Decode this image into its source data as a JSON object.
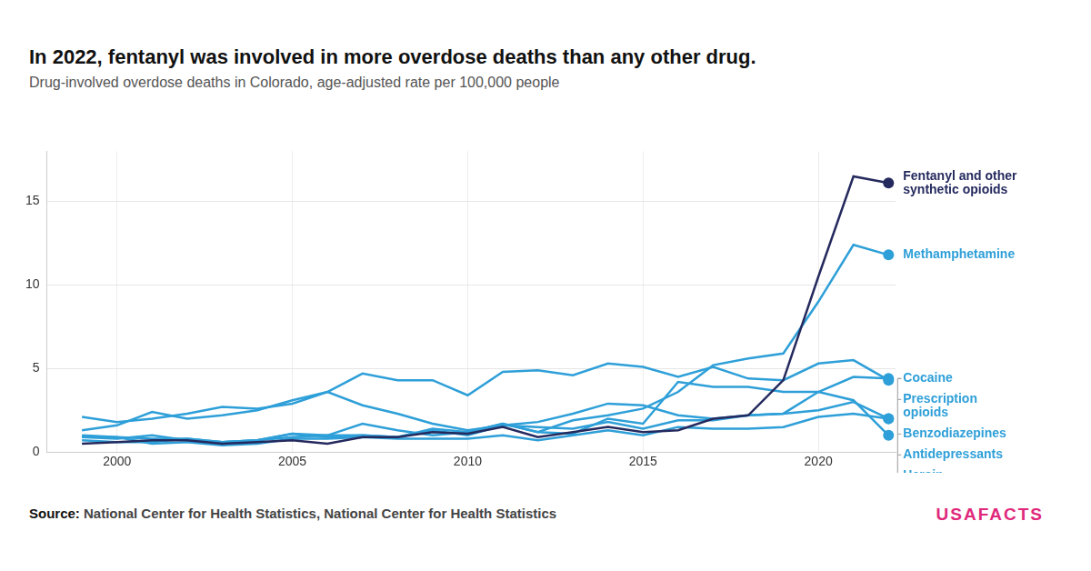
{
  "chart_data": {
    "type": "line",
    "title": "In 2022, fentanyl was involved in more overdose deaths than any other drug.",
    "subtitle": "Drug-involved overdose deaths in Colorado, age-adjusted rate per 100,000 people",
    "source": "Source: National Center for Health Statistics, National Center for Health Statistics",
    "brand": "USAFACTS",
    "x": [
      1999,
      2000,
      2001,
      2002,
      2003,
      2004,
      2005,
      2006,
      2007,
      2008,
      2009,
      2010,
      2011,
      2012,
      2013,
      2014,
      2015,
      2016,
      2017,
      2018,
      2019,
      2020,
      2021,
      2022
    ],
    "series": [
      {
        "name": "Fentanyl and other synthetic opioids",
        "color": "#252a5e",
        "values": [
          0.5,
          0.6,
          0.7,
          0.7,
          0.5,
          0.6,
          0.7,
          0.5,
          0.9,
          0.9,
          1.2,
          1.1,
          1.5,
          0.9,
          1.2,
          1.5,
          1.2,
          1.3,
          2.0,
          2.2,
          4.3,
          10.5,
          16.5,
          16.1
        ]
      },
      {
        "name": "Methamphetamine",
        "color": "#2e9fd8",
        "values": [
          0.9,
          0.8,
          1.0,
          0.7,
          0.6,
          0.7,
          1.1,
          1.0,
          1.7,
          1.3,
          1.0,
          1.2,
          1.7,
          1.2,
          1.9,
          2.2,
          2.6,
          3.6,
          5.2,
          5.6,
          5.9,
          9.0,
          12.4,
          11.8
        ]
      },
      {
        "name": "Cocaine",
        "color": "#2e9fd8",
        "values": [
          1.3,
          1.6,
          2.4,
          2.0,
          2.2,
          2.5,
          3.1,
          3.6,
          2.8,
          2.3,
          1.7,
          1.3,
          1.6,
          1.8,
          2.3,
          2.9,
          2.8,
          2.2,
          2.0,
          2.2,
          2.3,
          3.6,
          4.5,
          4.4
        ]
      },
      {
        "name": "Prescription opioids",
        "color": "#2e9fd8",
        "values": [
          2.1,
          1.8,
          2.0,
          2.3,
          2.7,
          2.6,
          2.9,
          3.6,
          4.7,
          4.3,
          4.3,
          3.4,
          4.8,
          4.9,
          4.6,
          5.3,
          5.1,
          4.5,
          5.1,
          4.4,
          4.3,
          5.3,
          5.5,
          4.3
        ]
      },
      {
        "name": "Benzodiazepines",
        "color": "#2e9fd8",
        "values": [
          0.9,
          0.9,
          0.8,
          0.8,
          0.6,
          0.7,
          1.1,
          0.9,
          1.0,
          0.9,
          1.3,
          1.0,
          1.6,
          1.5,
          1.4,
          1.8,
          1.4,
          1.9,
          1.9,
          2.2,
          2.3,
          2.5,
          3.0,
          2.0
        ]
      },
      {
        "name": "Antidepressants",
        "color": "#2e9fd8",
        "values": [
          1.0,
          0.9,
          0.5,
          0.6,
          0.4,
          0.5,
          0.8,
          0.8,
          0.9,
          0.8,
          0.8,
          0.8,
          1.0,
          0.7,
          1.0,
          1.3,
          1.0,
          1.5,
          1.4,
          1.4,
          1.5,
          2.1,
          2.3,
          2.0
        ]
      },
      {
        "name": "Heroin",
        "color": "#2e9fd8",
        "values": [
          0.7,
          0.6,
          0.6,
          0.8,
          0.6,
          0.7,
          0.9,
          1.0,
          1.0,
          0.9,
          1.4,
          1.2,
          1.7,
          1.2,
          1.1,
          2.0,
          1.7,
          4.2,
          3.9,
          3.9,
          3.6,
          3.6,
          3.1,
          1.0
        ]
      }
    ],
    "xlim": [
      1998,
      2022.2
    ],
    "xticks": [
      2000,
      2005,
      2010,
      2015,
      2020
    ],
    "ylim": [
      0,
      18
    ],
    "yticks": [
      0,
      5,
      10,
      15
    ],
    "grid": true
  }
}
